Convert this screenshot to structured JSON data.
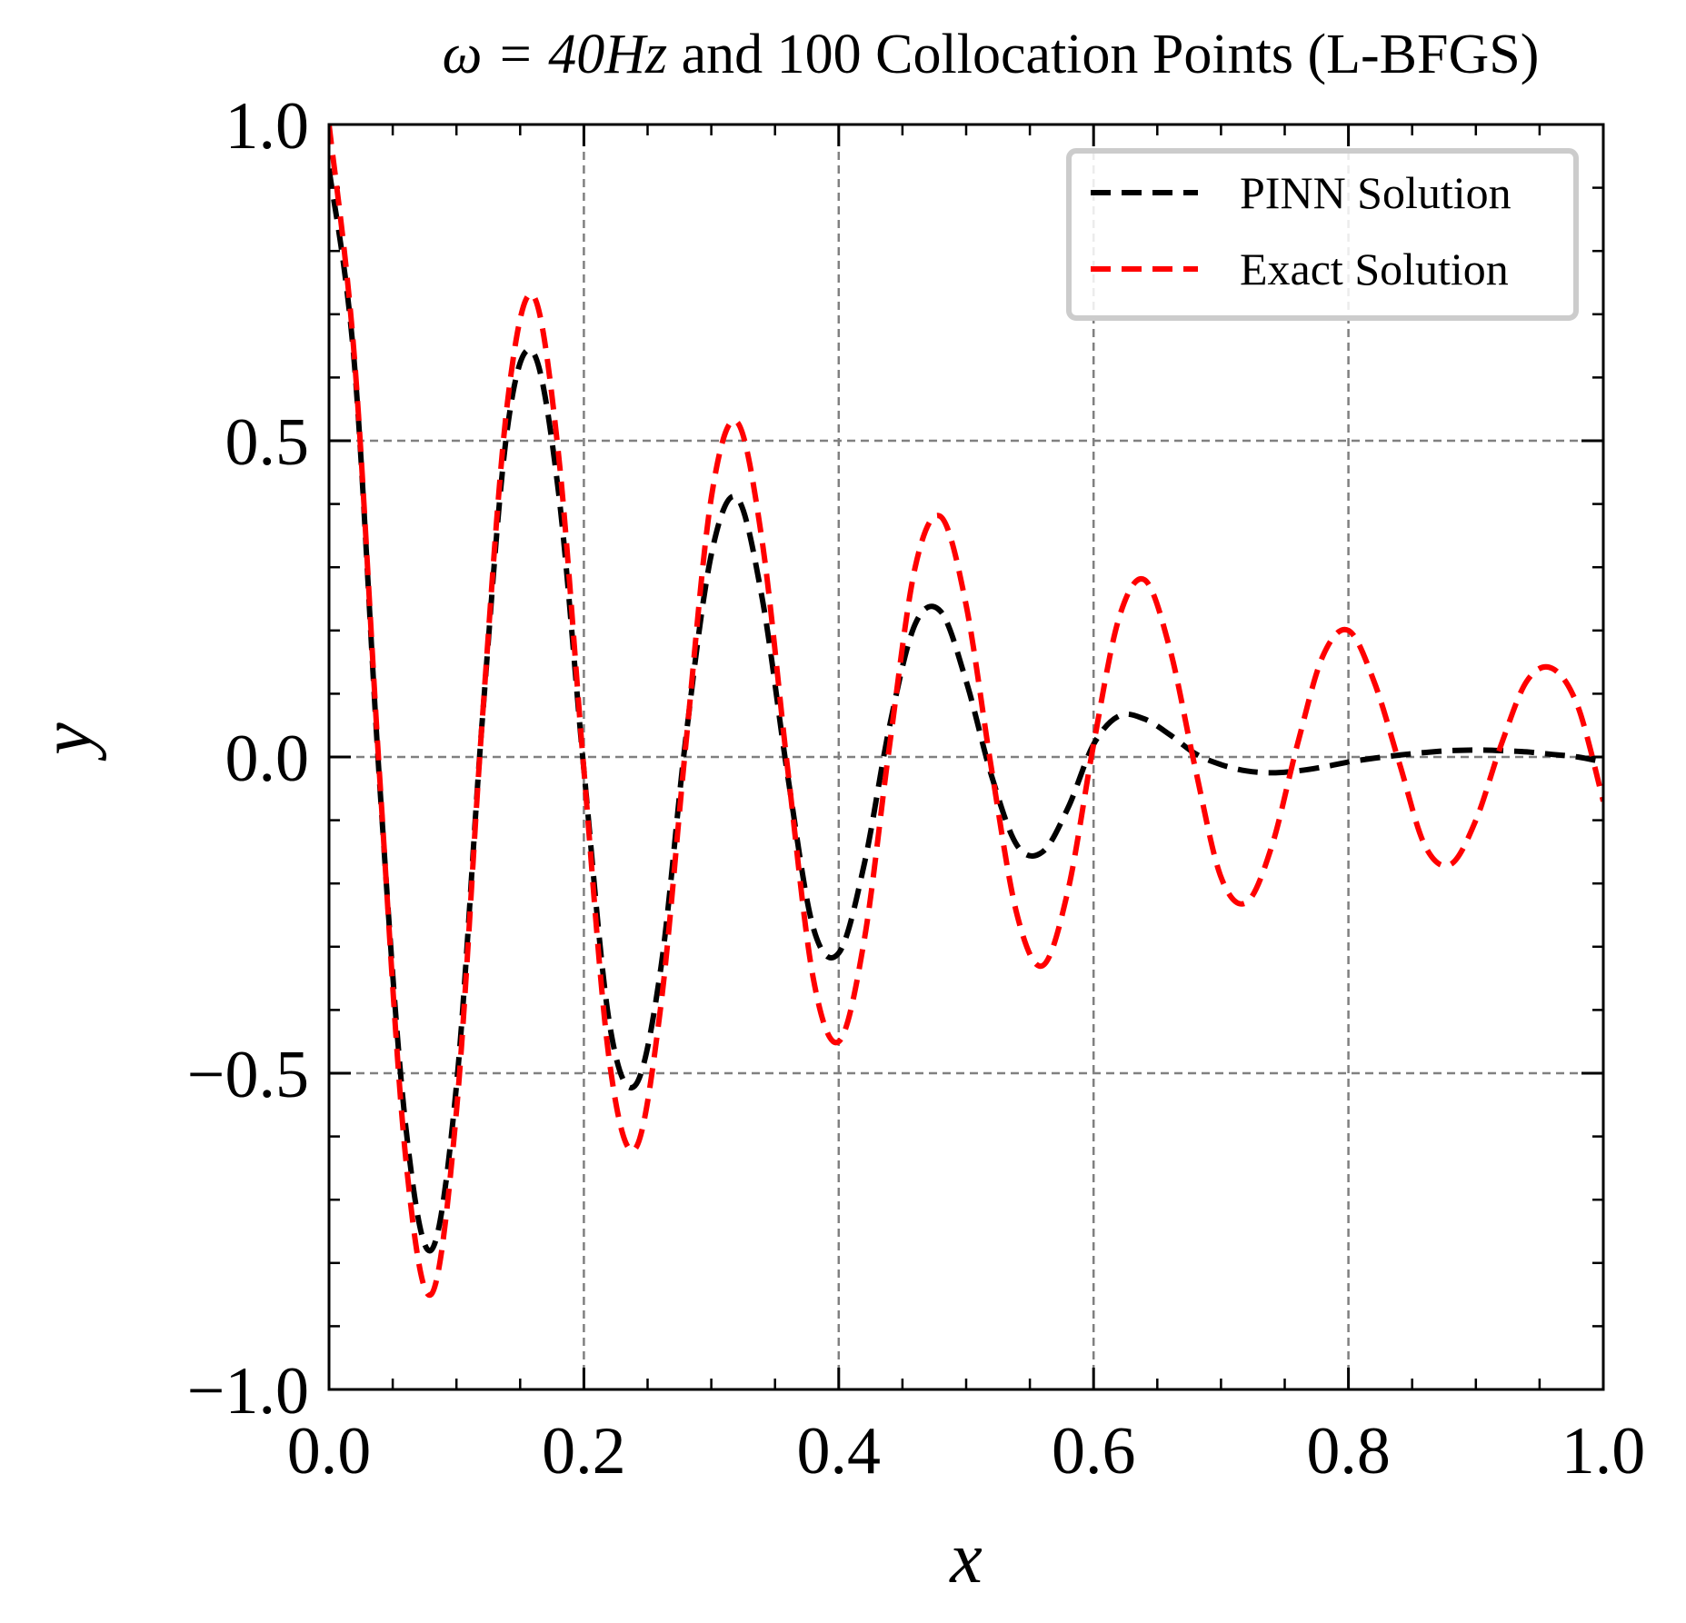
{
  "chart_data": {
    "type": "line",
    "title_prefix": "ω = 40",
    "title_unit": "Hz",
    "title_suffix": " and 100 Collocation Points (L-BFGS)",
    "xlabel": "x",
    "ylabel": "y",
    "xlim": [
      0.0,
      1.0
    ],
    "ylim": [
      -1.0,
      1.0
    ],
    "xticks": [
      "0.0",
      "0.2",
      "0.4",
      "0.6",
      "0.8",
      "1.0"
    ],
    "yticks": [
      "−1.0",
      "−0.5",
      "0.0",
      "0.5",
      "1.0"
    ],
    "xtick_values": [
      0.0,
      0.2,
      0.4,
      0.6,
      0.8,
      1.0
    ],
    "ytick_values": [
      -1.0,
      -0.5,
      0.0,
      0.5,
      1.0
    ],
    "grid": true,
    "legend_position": "top-right",
    "series": [
      {
        "name": "PINN Solution",
        "color": "#000000",
        "style": "dashed",
        "points": [
          [
            0.0,
            0.93
          ],
          [
            0.02,
            0.62
          ],
          [
            0.04,
            -0.05
          ],
          [
            0.06,
            -0.58
          ],
          [
            0.08,
            -0.78
          ],
          [
            0.1,
            -0.52
          ],
          [
            0.12,
            0.05
          ],
          [
            0.14,
            0.52
          ],
          [
            0.16,
            0.64
          ],
          [
            0.18,
            0.42
          ],
          [
            0.2,
            -0.02
          ],
          [
            0.22,
            -0.42
          ],
          [
            0.24,
            -0.52
          ],
          [
            0.26,
            -0.34
          ],
          [
            0.28,
            0.03
          ],
          [
            0.3,
            0.32
          ],
          [
            0.32,
            0.41
          ],
          [
            0.34,
            0.25
          ],
          [
            0.36,
            -0.03
          ],
          [
            0.38,
            -0.27
          ],
          [
            0.4,
            -0.31
          ],
          [
            0.42,
            -0.17
          ],
          [
            0.44,
            0.05
          ],
          [
            0.46,
            0.21
          ],
          [
            0.48,
            0.23
          ],
          [
            0.5,
            0.12
          ],
          [
            0.52,
            -0.03
          ],
          [
            0.54,
            -0.14
          ],
          [
            0.56,
            -0.15
          ],
          [
            0.58,
            -0.08
          ],
          [
            0.6,
            0.02
          ],
          [
            0.62,
            0.065
          ],
          [
            0.64,
            0.06
          ],
          [
            0.66,
            0.035
          ],
          [
            0.68,
            0.005
          ],
          [
            0.7,
            -0.012
          ],
          [
            0.72,
            -0.022
          ],
          [
            0.74,
            -0.025
          ],
          [
            0.76,
            -0.022
          ],
          [
            0.78,
            -0.016
          ],
          [
            0.8,
            -0.008
          ],
          [
            0.82,
            -0.002
          ],
          [
            0.84,
            0.003
          ],
          [
            0.86,
            0.007
          ],
          [
            0.88,
            0.01
          ],
          [
            0.9,
            0.011
          ],
          [
            0.92,
            0.01
          ],
          [
            0.94,
            0.008
          ],
          [
            0.96,
            0.004
          ],
          [
            0.98,
            0.0
          ],
          [
            1.0,
            -0.008
          ]
        ]
      },
      {
        "name": "Exact Solution",
        "color": "#ff0000",
        "style": "dashed",
        "points": [
          [
            0.0,
            1.0
          ],
          [
            0.02,
            0.63
          ],
          [
            0.04,
            -0.04
          ],
          [
            0.06,
            -0.63
          ],
          [
            0.08,
            -0.85
          ],
          [
            0.1,
            -0.56
          ],
          [
            0.12,
            0.05
          ],
          [
            0.14,
            0.56
          ],
          [
            0.16,
            0.73
          ],
          [
            0.18,
            0.48
          ],
          [
            0.2,
            -0.02
          ],
          [
            0.22,
            -0.48
          ],
          [
            0.24,
            -0.62
          ],
          [
            0.26,
            -0.4
          ],
          [
            0.28,
            0.02
          ],
          [
            0.3,
            0.41
          ],
          [
            0.32,
            0.53
          ],
          [
            0.34,
            0.34
          ],
          [
            0.36,
            -0.02
          ],
          [
            0.38,
            -0.35
          ],
          [
            0.4,
            -0.45
          ],
          [
            0.42,
            -0.29
          ],
          [
            0.44,
            0.02
          ],
          [
            0.46,
            0.3
          ],
          [
            0.48,
            0.38
          ],
          [
            0.5,
            0.24
          ],
          [
            0.52,
            -0.02
          ],
          [
            0.54,
            -0.25
          ],
          [
            0.56,
            -0.33
          ],
          [
            0.58,
            -0.21
          ],
          [
            0.6,
            0.02
          ],
          [
            0.62,
            0.22
          ],
          [
            0.64,
            0.28
          ],
          [
            0.66,
            0.17
          ],
          [
            0.68,
            -0.02
          ],
          [
            0.7,
            -0.19
          ],
          [
            0.72,
            -0.23
          ],
          [
            0.74,
            -0.14
          ],
          [
            0.76,
            0.02
          ],
          [
            0.78,
            0.16
          ],
          [
            0.8,
            0.2
          ],
          [
            0.82,
            0.12
          ],
          [
            0.84,
            -0.01
          ],
          [
            0.86,
            -0.14
          ],
          [
            0.88,
            -0.17
          ],
          [
            0.9,
            -0.1
          ],
          [
            0.92,
            0.02
          ],
          [
            0.94,
            0.12
          ],
          [
            0.96,
            0.14
          ],
          [
            0.98,
            0.08
          ],
          [
            1.0,
            -0.07
          ]
        ]
      }
    ]
  }
}
